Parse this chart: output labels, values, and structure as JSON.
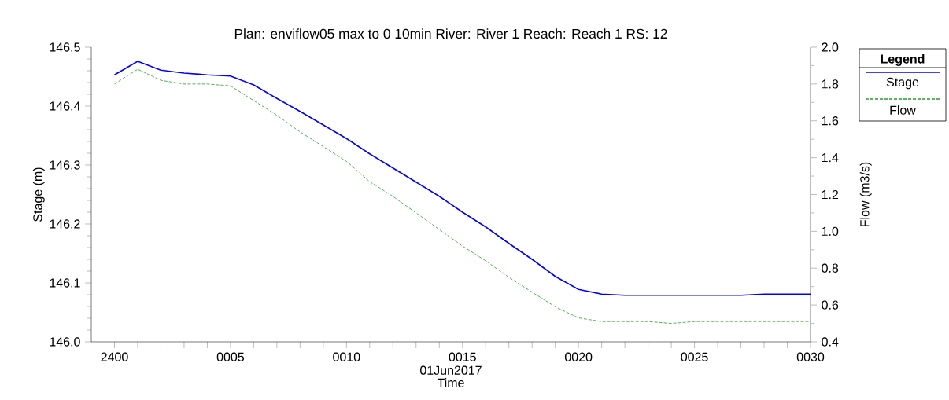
{
  "chart_data": {
    "type": "line",
    "title": "Plan: enviflow05 max to 0 10min   River: River 1   Reach: Reach 1   RS: 12",
    "xlabel": "Time",
    "ylabel": "Stage (m)",
    "y2label": "Flow (m3/s)",
    "legend_title": "Legend",
    "annotations": [
      "01Jun2017"
    ],
    "x": [
      "2017-06-01T00:00",
      "2017-06-01T00:01",
      "2017-06-01T00:02",
      "2017-06-01T00:03",
      "2017-06-01T00:04",
      "2017-06-01T00:05",
      "2017-06-01T00:06",
      "2017-06-01T00:07",
      "2017-06-01T00:08",
      "2017-06-01T00:09",
      "2017-06-01T00:10",
      "2017-06-01T00:11",
      "2017-06-01T00:12",
      "2017-06-01T00:13",
      "2017-06-01T00:14",
      "2017-06-01T00:15",
      "2017-06-01T00:16",
      "2017-06-01T00:17",
      "2017-06-01T00:18",
      "2017-06-01T00:19",
      "2017-06-01T00:20",
      "2017-06-01T00:21",
      "2017-06-01T00:22",
      "2017-06-01T00:23",
      "2017-06-01T00:24",
      "2017-06-01T00:25",
      "2017-06-01T00:26",
      "2017-06-01T00:27",
      "2017-06-01T00:28",
      "2017-06-01T00:29",
      "2017-06-01T00:30"
    ],
    "series": [
      {
        "name": "Stage",
        "color": "#0000ff",
        "line_style": "solid",
        "values": [
          146.453,
          146.476,
          146.461,
          146.456,
          146.453,
          146.451,
          146.436,
          146.413,
          146.391,
          146.368,
          146.345,
          146.319,
          146.295,
          146.271,
          146.247,
          146.22,
          146.195,
          146.167,
          146.14,
          146.111,
          146.089,
          146.081,
          146.079,
          146.079,
          146.079,
          146.079,
          146.079,
          146.079,
          146.081,
          146.081,
          146.081
        ]
      },
      {
        "name": "Flow",
        "color": "#22a022",
        "line_style": "dashed",
        "axis": "y2",
        "values": [
          1.8,
          1.88,
          1.82,
          1.8,
          1.8,
          1.79,
          1.71,
          1.63,
          1.54,
          1.46,
          1.38,
          1.27,
          1.19,
          1.1,
          1.01,
          0.92,
          0.84,
          0.75,
          0.67,
          0.59,
          0.53,
          0.51,
          0.51,
          0.51,
          0.5,
          0.51,
          0.51,
          0.51,
          0.51,
          0.51,
          0.51
        ]
      }
    ],
    "xlim": [
      "2017-05-31T23:59",
      "2017-06-01T00:30"
    ],
    "xticks": [
      {
        "value": "2017-06-01T00:00",
        "label": "2400"
      },
      {
        "value": "2017-06-01T00:01",
        "label": null
      },
      {
        "value": "2017-06-01T00:02",
        "label": null
      },
      {
        "value": "2017-06-01T00:03",
        "label": null
      },
      {
        "value": "2017-06-01T00:04",
        "label": null
      },
      {
        "value": "2017-06-01T00:05",
        "label": "0005"
      },
      {
        "value": "2017-06-01T00:06",
        "label": null
      },
      {
        "value": "2017-06-01T00:07",
        "label": null
      },
      {
        "value": "2017-06-01T00:08",
        "label": null
      },
      {
        "value": "2017-06-01T00:09",
        "label": null
      },
      {
        "value": "2017-06-01T00:10",
        "label": "0010"
      },
      {
        "value": "2017-06-01T00:11",
        "label": null
      },
      {
        "value": "2017-06-01T00:12",
        "label": null
      },
      {
        "value": "2017-06-01T00:13",
        "label": null
      },
      {
        "value": "2017-06-01T00:14",
        "label": null
      },
      {
        "value": "2017-06-01T00:15",
        "label": "0015"
      },
      {
        "value": "2017-06-01T00:16",
        "label": null
      },
      {
        "value": "2017-06-01T00:17",
        "label": null
      },
      {
        "value": "2017-06-01T00:18",
        "label": null
      },
      {
        "value": "2017-06-01T00:19",
        "label": null
      },
      {
        "value": "2017-06-01T00:20",
        "label": "0020"
      },
      {
        "value": "2017-06-01T00:21",
        "label": null
      },
      {
        "value": "2017-06-01T00:22",
        "label": null
      },
      {
        "value": "2017-06-01T00:23",
        "label": null
      },
      {
        "value": "2017-06-01T00:24",
        "label": null
      },
      {
        "value": "2017-06-01T00:25",
        "label": "0025"
      },
      {
        "value": "2017-06-01T00:26",
        "label": null
      },
      {
        "value": "2017-06-01T00:27",
        "label": null
      },
      {
        "value": "2017-06-01T00:28",
        "label": null
      },
      {
        "value": "2017-06-01T00:29",
        "label": null
      },
      {
        "value": "2017-06-01T00:30",
        "label": "0030"
      }
    ],
    "ylim": [
      146.0,
      146.5
    ],
    "yticks": [
      {
        "value": 146.0,
        "label": "146.0"
      },
      {
        "value": 146.1,
        "label": "146.1"
      },
      {
        "value": 146.2,
        "label": "146.2"
      },
      {
        "value": 146.3,
        "label": "146.3"
      },
      {
        "value": 146.4,
        "label": "146.4"
      },
      {
        "value": 146.5,
        "label": "146.5"
      }
    ],
    "y2lim": [
      0.4,
      2.0
    ],
    "y2ticks": [
      {
        "value": 0.4,
        "label": "0.4"
      },
      {
        "value": 0.6,
        "label": "0.6"
      },
      {
        "value": 0.8,
        "label": "0.8"
      },
      {
        "value": 1.0,
        "label": "1.0"
      },
      {
        "value": 1.2,
        "label": "1.2"
      },
      {
        "value": 1.4,
        "label": "1.4"
      },
      {
        "value": 1.6,
        "label": "1.6"
      },
      {
        "value": 1.8,
        "label": "1.8"
      },
      {
        "value": 2.0,
        "label": "2.0"
      }
    ],
    "grid": false,
    "legend": "right",
    "marker": "none"
  }
}
